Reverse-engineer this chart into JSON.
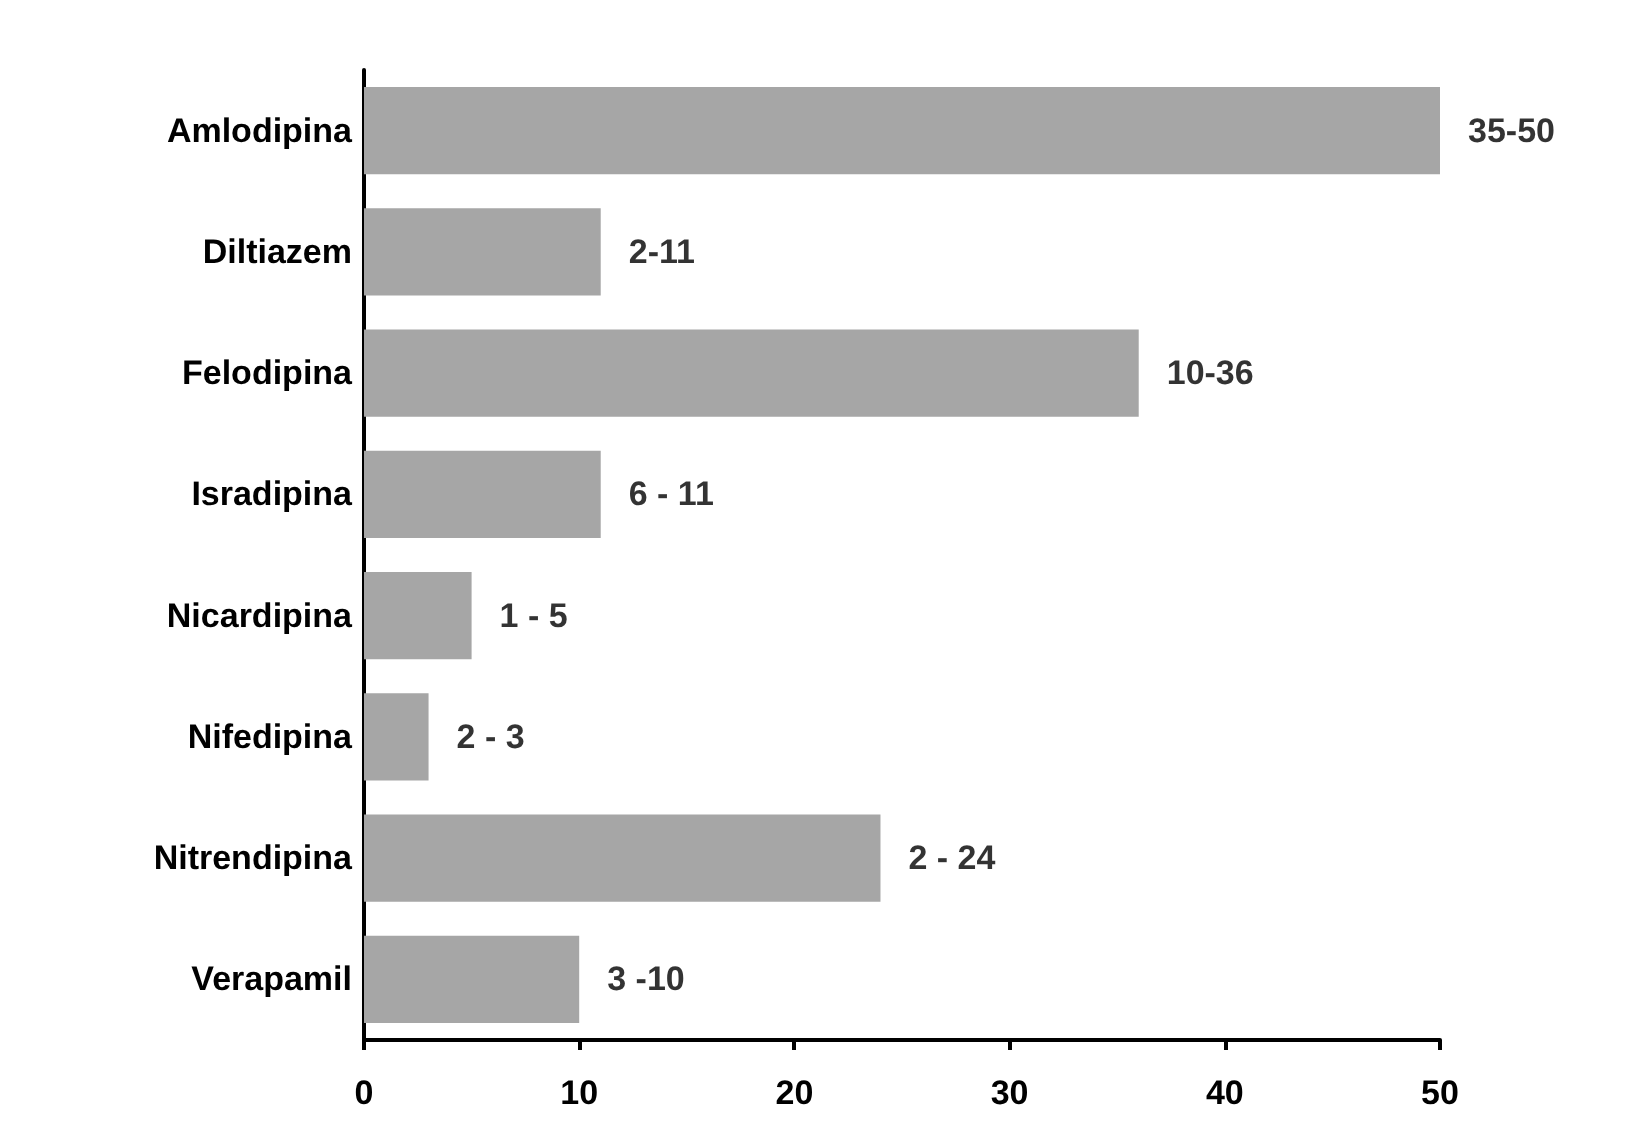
{
  "chart_data": {
    "type": "bar",
    "orientation": "horizontal",
    "categories": [
      "Amlodipina",
      "Diltiazem",
      "Felodipina",
      "Isradipina",
      "Nicardipina",
      "Nifedipina",
      "Nitrendipina",
      "Verapamil"
    ],
    "values": [
      50,
      11,
      36,
      11,
      5,
      3,
      24,
      10
    ],
    "annotations": [
      {
        "text": "35-50",
        "x": 50,
        "y": "Amlodipina"
      },
      {
        "text": "2-11",
        "x": 11,
        "y": "Diltiazem"
      },
      {
        "text": "10-36",
        "x": 36,
        "y": "Felodipina"
      },
      {
        "text": "6 - 11",
        "x": 11,
        "y": "Isradipina"
      },
      {
        "text": "1 - 5",
        "x": 5,
        "y": "Nicardipina"
      },
      {
        "text": "2 - 3",
        "x": 3,
        "y": "Nifedipina"
      },
      {
        "text": "2 - 24",
        "x": 24,
        "y": "Nitrendipina"
      },
      {
        "text": "3 -10",
        "x": 10,
        "y": "Verapamil"
      }
    ],
    "color": "#a6a6a6",
    "xlim": [
      0,
      50
    ],
    "xticks": [
      0,
      10,
      20,
      30,
      40,
      50
    ],
    "grid": false
  }
}
